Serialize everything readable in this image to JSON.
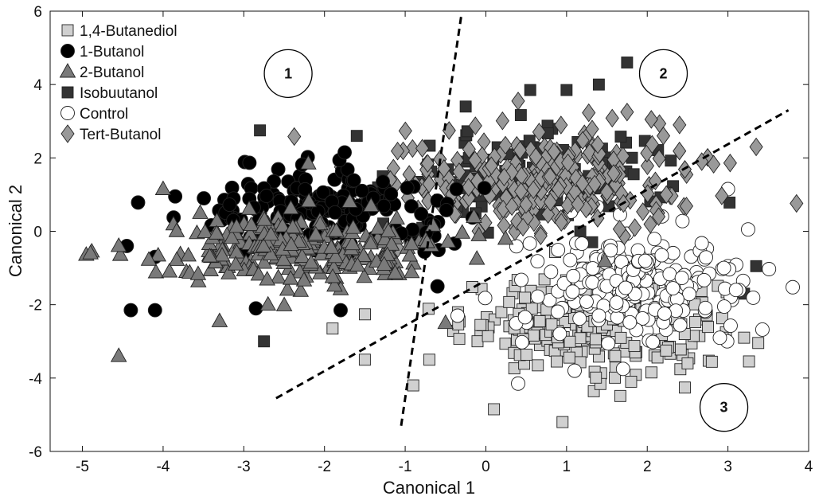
{
  "chart_data": {
    "type": "scatter",
    "title": "",
    "xlabel": "Canonical 1",
    "ylabel": "Canonical 2",
    "xlim": [
      -5.4,
      4.0
    ],
    "ylim": [
      -6,
      6
    ],
    "xticks": [
      -5,
      -4,
      -3,
      -2,
      -1,
      0,
      1,
      2,
      3,
      4
    ],
    "yticks": [
      -6,
      -4,
      -2,
      0,
      2,
      4,
      6
    ],
    "legend_position": "top-left",
    "series": [
      {
        "name": "1,4-Butanediol",
        "marker": "square",
        "fill": "#d0d0d0",
        "center": [
          1.3,
          -2.5
        ],
        "spread": [
          0.8,
          0.65
        ],
        "count": 260,
        "outliers": [
          [
            -1.5,
            -3.5
          ],
          [
            -0.9,
            -4.2
          ],
          [
            0.1,
            -4.85
          ],
          [
            0.95,
            -5.2
          ],
          [
            1.8,
            -4.1
          ],
          [
            3.2,
            -2.9
          ],
          [
            2.5,
            -3.6
          ],
          [
            -0.7,
            -3.5
          ],
          [
            -1.9,
            -2.65
          ]
        ]
      },
      {
        "name": "1-Butanol",
        "marker": "circle",
        "fill": "#000000",
        "center": [
          -2.0,
          0.6
        ],
        "spread": [
          0.75,
          0.55
        ],
        "count": 200,
        "outliers": [
          [
            -4.4,
            -2.15
          ],
          [
            -4.1,
            -2.15
          ],
          [
            -4.45,
            -0.4
          ],
          [
            -4.1,
            -0.7
          ],
          [
            -3.85,
            0.95
          ],
          [
            -1.75,
            2.15
          ],
          [
            -2.85,
            -2.1
          ],
          [
            -1.8,
            -2.15
          ],
          [
            -0.6,
            -1.5
          ]
        ]
      },
      {
        "name": "2-Butanol",
        "marker": "triangle",
        "fill": "#7a7a7a",
        "center": [
          -2.3,
          -0.5
        ],
        "spread": [
          0.85,
          0.5
        ],
        "count": 260,
        "outliers": [
          [
            -4.9,
            -0.6
          ],
          [
            -4.55,
            -3.4
          ],
          [
            -4.55,
            -0.4
          ],
          [
            -4.0,
            1.15
          ],
          [
            -3.3,
            -2.45
          ],
          [
            -2.2,
            1.85
          ],
          [
            -0.5,
            -2.5
          ],
          [
            -2.7,
            -2.0
          ]
        ]
      },
      {
        "name": "Isobuutanol",
        "marker": "square",
        "fill": "#333333",
        "center": [
          0.5,
          1.5
        ],
        "spread": [
          0.75,
          0.7
        ],
        "count": 110,
        "outliers": [
          [
            1.75,
            4.6
          ],
          [
            -2.8,
            2.75
          ],
          [
            -2.75,
            -3.0
          ],
          [
            -1.6,
            2.6
          ],
          [
            3.35,
            -0.95
          ],
          [
            3.2,
            -1.7
          ],
          [
            2.35,
            -1.65
          ],
          [
            1.0,
            3.85
          ],
          [
            0.55,
            3.85
          ],
          [
            1.4,
            4.0
          ],
          [
            -0.25,
            3.4
          ]
        ]
      },
      {
        "name": "Control",
        "marker": "circle",
        "fill": "#ffffff",
        "center": [
          1.8,
          -1.4
        ],
        "spread": [
          0.65,
          0.75
        ],
        "count": 240,
        "outliers": [
          [
            3.25,
            0.05
          ],
          [
            3.0,
            1.15
          ],
          [
            2.95,
            -1.0
          ],
          [
            2.9,
            -2.9
          ],
          [
            3.1,
            -1.6
          ],
          [
            0.4,
            -4.15
          ],
          [
            1.1,
            -3.8
          ],
          [
            1.7,
            -3.75
          ],
          [
            -0.35,
            -2.3
          ],
          [
            -1.65,
            0.75
          ]
        ]
      },
      {
        "name": "Tert-Butanol",
        "marker": "diamond",
        "fill": "#999999",
        "center": [
          0.8,
          1.3
        ],
        "spread": [
          0.9,
          0.75
        ],
        "count": 280,
        "outliers": [
          [
            3.35,
            2.3
          ],
          [
            2.4,
            2.9
          ],
          [
            2.2,
            2.6
          ],
          [
            1.75,
            3.25
          ],
          [
            2.05,
            3.05
          ],
          [
            0.4,
            3.55
          ],
          [
            1.7,
            2.05
          ],
          [
            -1.5,
            0.45
          ],
          [
            -0.95,
            1.55
          ]
        ]
      }
    ],
    "divider_lines": [
      {
        "from": [
          -1.05,
          -5.3
        ],
        "to": [
          -0.3,
          5.95
        ]
      },
      {
        "from": [
          -2.6,
          -4.55
        ],
        "to": [
          3.75,
          3.3
        ]
      }
    ],
    "region_labels": [
      {
        "text": "1",
        "x": -2.45,
        "y": 4.3
      },
      {
        "text": "2",
        "x": 2.2,
        "y": 4.3
      },
      {
        "text": "3",
        "x": 2.95,
        "y": -4.8
      }
    ]
  }
}
